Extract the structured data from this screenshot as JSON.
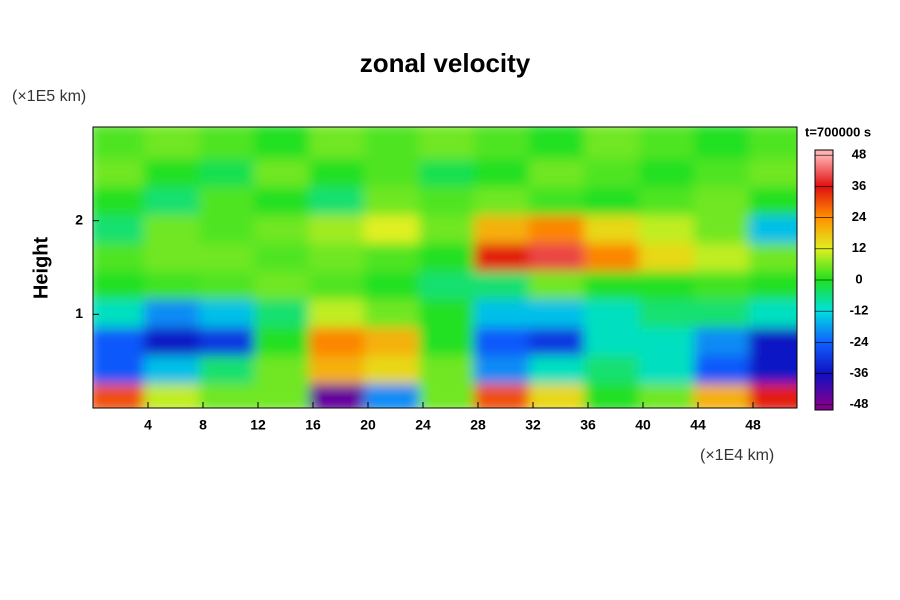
{
  "chart_data": {
    "type": "heatmap",
    "title": "zonal velocity",
    "y_unit": "(×1E5 km)",
    "ylabel": "Height",
    "x_unit": "(×1E4 km)",
    "colorbar_title": "t=700000 s",
    "xlim": [
      0,
      51.2
    ],
    "ylim": [
      0,
      3
    ],
    "xticks": [
      4,
      8,
      12,
      16,
      20,
      24,
      28,
      32,
      36,
      40,
      44,
      48
    ],
    "yticks": [
      1,
      2
    ],
    "zlim": [
      -50,
      50
    ],
    "colorbar_ticks": [
      48,
      36,
      24,
      12,
      0,
      -12,
      -24,
      -36,
      -48
    ],
    "colorscale": [
      [
        -48,
        "#800090"
      ],
      [
        -36,
        "#1010c0"
      ],
      [
        -24,
        "#1060ff"
      ],
      [
        -12,
        "#00e0e0"
      ],
      [
        0,
        "#20e020"
      ],
      [
        12,
        "#e0f020"
      ],
      [
        24,
        "#ff9000"
      ],
      [
        36,
        "#e01010"
      ],
      [
        48,
        "#ffb0b0"
      ]
    ],
    "x": [
      2,
      6,
      10,
      14,
      18,
      22,
      26,
      30,
      34,
      38,
      42,
      46,
      50
    ],
    "y": [
      0.15,
      0.45,
      0.75,
      1.05,
      1.35,
      1.65,
      1.95,
      2.25,
      2.55,
      2.85
    ],
    "z": [
      [
        30,
        10,
        5,
        5,
        -45,
        -20,
        5,
        30,
        15,
        0,
        5,
        20,
        35
      ],
      [
        -25,
        -15,
        -5,
        5,
        20,
        15,
        5,
        -20,
        -10,
        -5,
        -10,
        -25,
        -35
      ],
      [
        -25,
        -35,
        -30,
        0,
        25,
        20,
        0,
        -25,
        -30,
        -10,
        -10,
        -20,
        -35
      ],
      [
        -10,
        -20,
        -15,
        -5,
        10,
        5,
        0,
        -15,
        -15,
        -10,
        -5,
        -5,
        -10
      ],
      [
        0,
        2,
        3,
        5,
        3,
        0,
        -5,
        -5,
        5,
        0,
        0,
        2,
        0
      ],
      [
        3,
        5,
        5,
        3,
        5,
        3,
        0,
        35,
        40,
        25,
        15,
        10,
        5
      ],
      [
        -5,
        5,
        3,
        5,
        8,
        12,
        5,
        20,
        25,
        15,
        10,
        5,
        -15
      ],
      [
        0,
        -5,
        3,
        0,
        -5,
        5,
        3,
        5,
        2,
        0,
        3,
        5,
        0
      ],
      [
        5,
        0,
        -3,
        5,
        0,
        3,
        -3,
        0,
        5,
        3,
        0,
        3,
        5
      ],
      [
        3,
        5,
        3,
        0,
        5,
        3,
        5,
        3,
        0,
        5,
        3,
        0,
        3
      ]
    ]
  }
}
